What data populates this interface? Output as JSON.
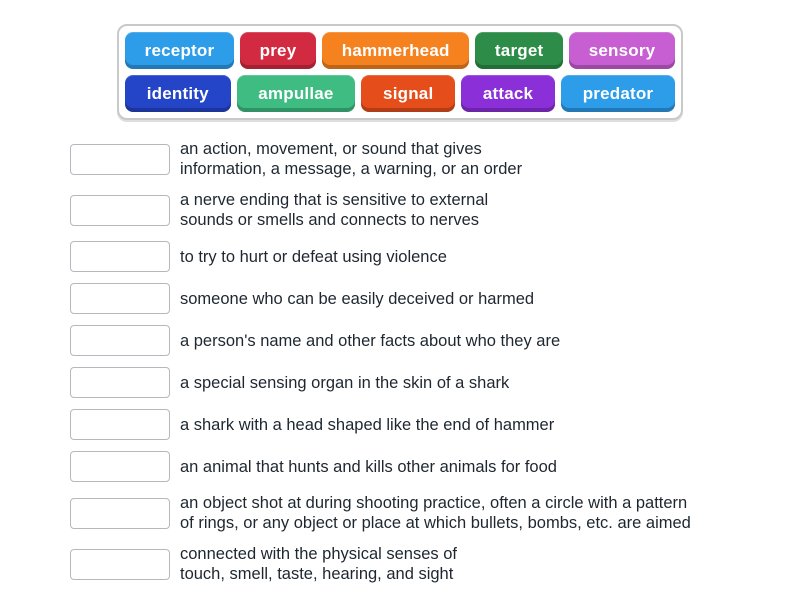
{
  "activity": {
    "type_label": "match-up",
    "background_color": "#ffffff",
    "text_color": "#1e2730",
    "bank_border_color": "#c9c9c9",
    "drop_box_border_color": "#b5b9bd"
  },
  "word_bank": {
    "rows": [
      [
        {
          "label": "receptor",
          "color": "#2d9ce9"
        },
        {
          "label": "prey",
          "color": "#d22b41"
        },
        {
          "label": "hammerhead",
          "color": "#f5821f"
        },
        {
          "label": "target",
          "color": "#2d8c47"
        },
        {
          "label": "sensory",
          "color": "#c75ed1"
        }
      ],
      [
        {
          "label": "identity",
          "color": "#2545c9"
        },
        {
          "label": "ampullae",
          "color": "#3fbc82"
        },
        {
          "label": "signal",
          "color": "#e54e1b"
        },
        {
          "label": "attack",
          "color": "#8b2fd9"
        },
        {
          "label": "predator",
          "color": "#2d9ce9"
        }
      ]
    ]
  },
  "definitions": [
    {
      "text": "an action, movement, or sound that gives\ninformation, a message, a warning, or an order"
    },
    {
      "text": "a nerve ending that is sensitive to external\nsounds or smells and connects to nerves"
    },
    {
      "text": "to try to hurt or defeat using violence"
    },
    {
      "text": "someone who can be easily deceived or harmed"
    },
    {
      "text": "a person's name and other facts about who they are"
    },
    {
      "text": "a special sensing organ in the skin of a shark"
    },
    {
      "text": "a shark with a head shaped like the end of hammer"
    },
    {
      "text": "an animal that hunts and kills other animals for food"
    },
    {
      "text": "an object shot at during shooting practice, often a circle with a pattern\nof rings, or any object or place at which bullets, bombs, etc. are aimed"
    },
    {
      "text": "connected with the physical senses of\ntouch, smell, taste, hearing, and sight"
    }
  ]
}
